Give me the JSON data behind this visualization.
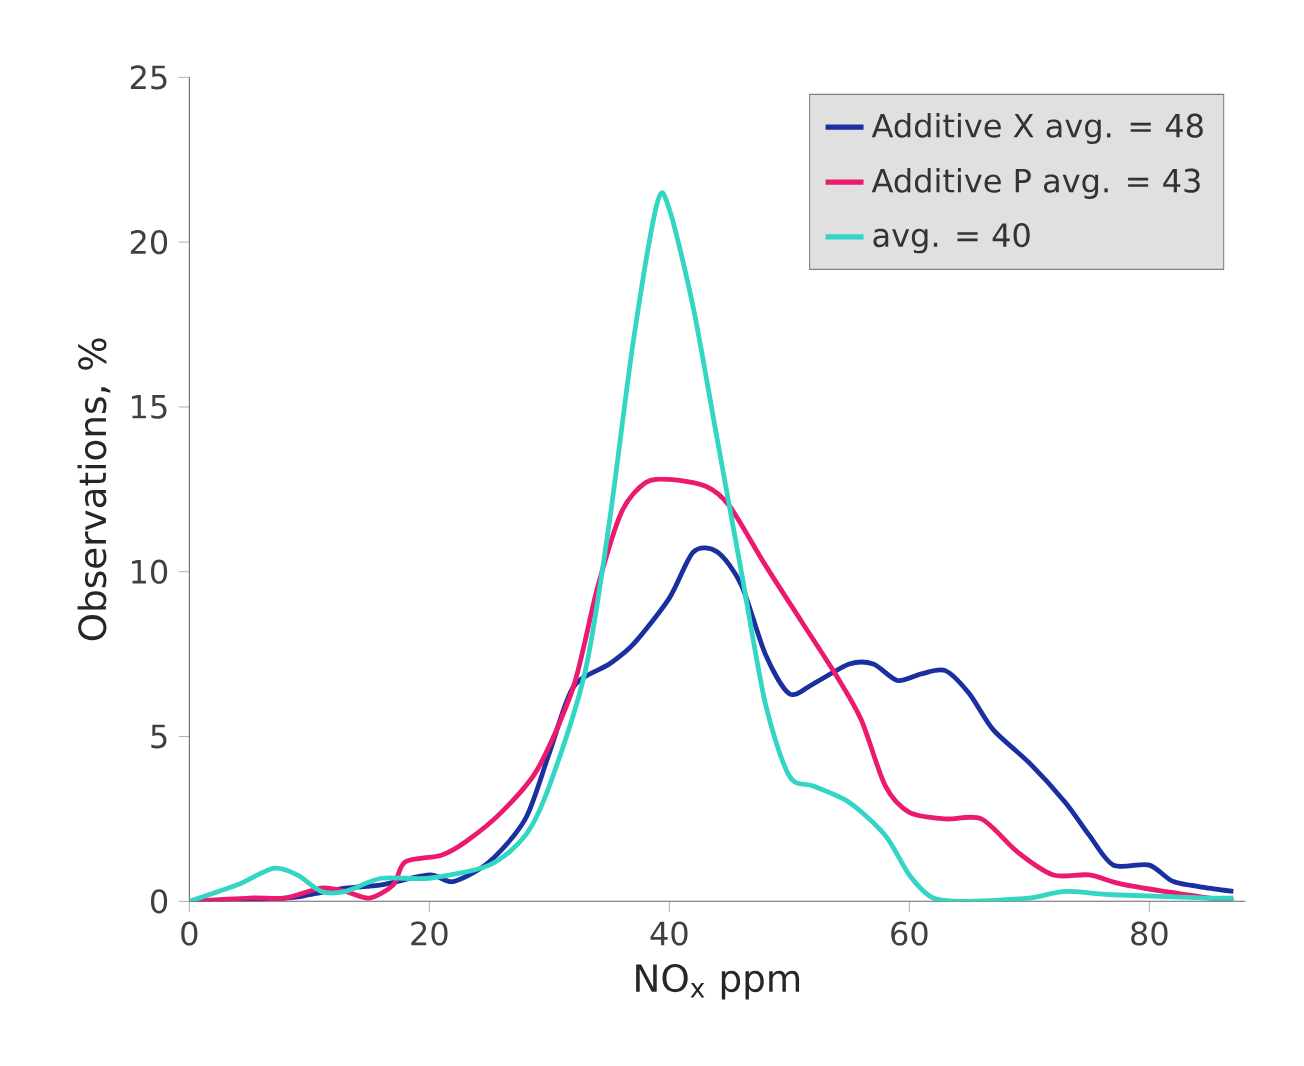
{
  "chart_data": {
    "type": "line",
    "xlabel": "NO$_{x}$ ppm",
    "ylabel": "Observations, %",
    "xlim": [
      0,
      88
    ],
    "ylim": [
      0,
      25
    ],
    "xticks": [
      0,
      20,
      40,
      60,
      80
    ],
    "yticks": [
      0,
      5,
      10,
      15,
      20,
      25
    ],
    "grid": false,
    "legend": "top right",
    "marker": "none",
    "line_style": "solid",
    "series": [
      {
        "name": "Additive X avg. = 48",
        "color": "#1a2fa0",
        "x": [
          0,
          8,
          10,
          13,
          16,
          20,
          22,
          25,
          28,
          30,
          32,
          35,
          37,
          40,
          42,
          44,
          46,
          48,
          50,
          52,
          55,
          57,
          59,
          61,
          63,
          65,
          67,
          70,
          73,
          75,
          77,
          80,
          82,
          85,
          87
        ],
        "values": [
          0,
          0.1,
          0.2,
          0.4,
          0.5,
          0.8,
          0.6,
          1.2,
          2.5,
          4.5,
          6.5,
          7.2,
          7.8,
          9.2,
          10.6,
          10.6,
          9.6,
          7.5,
          6.3,
          6.6,
          7.2,
          7.2,
          6.7,
          6.9,
          7,
          6.3,
          5.2,
          4.2,
          3,
          2,
          1.1,
          1.1,
          0.6,
          0.4,
          0.3
        ]
      },
      {
        "name": "Additive P avg. = 43",
        "color": "#ec1a6e",
        "x": [
          0,
          5,
          8,
          11,
          13,
          15,
          17,
          18,
          21,
          23,
          26,
          29,
          32,
          34,
          36,
          38,
          40,
          43,
          45,
          48,
          51,
          54,
          56,
          58,
          60,
          63,
          66,
          69,
          72,
          75,
          78,
          85,
          87
        ],
        "values": [
          0,
          0.1,
          0.1,
          0.4,
          0.3,
          0.1,
          0.5,
          1.2,
          1.4,
          1.8,
          2.7,
          4,
          6.5,
          9.5,
          11.8,
          12.7,
          12.8,
          12.6,
          12,
          10.2,
          8.5,
          6.8,
          5.5,
          3.5,
          2.7,
          2.5,
          2.5,
          1.5,
          0.8,
          0.8,
          0.5,
          0.1,
          0.1
        ]
      },
      {
        "name": "avg. = 40",
        "color": "#33d6c4",
        "x": [
          0,
          4,
          7,
          9,
          11,
          13,
          16,
          20,
          25,
          28,
          30,
          33,
          35,
          37,
          39,
          40,
          42,
          44,
          46,
          48,
          50,
          52,
          55,
          58,
          60,
          62,
          65,
          70,
          73,
          77,
          85,
          87
        ],
        "values": [
          0,
          0.5,
          1.0,
          0.8,
          0.3,
          0.3,
          0.7,
          0.7,
          1.1,
          2,
          3.5,
          7,
          11.5,
          17,
          21.2,
          21,
          18,
          14,
          10,
          6,
          3.8,
          3.5,
          3,
          2,
          0.8,
          0.1,
          0,
          0.1,
          0.3,
          0.2,
          0.1,
          0.1
        ]
      }
    ]
  }
}
